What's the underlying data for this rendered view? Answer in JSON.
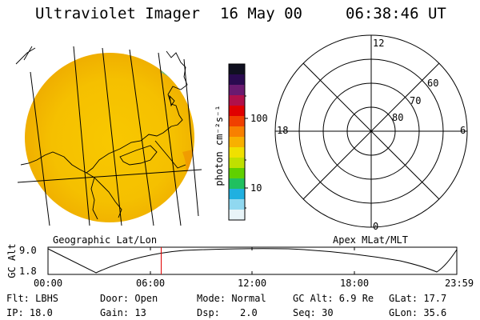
{
  "header": {
    "instrument": "Ultraviolet Imager",
    "date": "16 May 00",
    "time": "06:38:46 UT"
  },
  "colorbar": {
    "unit_label": "photon cm⁻²s⁻¹",
    "ticks": [
      "100",
      "10"
    ],
    "colors": [
      "#101020",
      "#2a0a50",
      "#6a1a70",
      "#b0104a",
      "#e00000",
      "#f04000",
      "#f88000",
      "#f8b000",
      "#f0e000",
      "#c0e000",
      "#60d000",
      "#20c060",
      "#20b0e0",
      "#90d8f0",
      "#e8f4f8"
    ]
  },
  "panels": {
    "left_label": "Geographic Lat/Lon",
    "right_label": "Apex MLat/MLT"
  },
  "polar": {
    "mlt_labels": [
      "12",
      "18",
      "6",
      "0"
    ],
    "lat_labels": [
      "60",
      "70",
      "80"
    ]
  },
  "timeline": {
    "axis_label": "GC Alt",
    "y_ticks": [
      "9.0",
      "1.8"
    ],
    "x_ticks": [
      "00:00",
      "06:00",
      "12:00",
      "18:00",
      "23:59"
    ],
    "current_time_fraction": 0.277
  },
  "status": {
    "flt": "Flt: LBHS",
    "door": "Door: Open",
    "mode": "Mode: Normal",
    "gc_alt": "GC Alt: 6.9 Re",
    "glat": "GLat: 17.7",
    "ip": "IP: 18.0",
    "gain": "Gain: 13",
    "dsp_label": "Dsp:",
    "dsp_value": "2.0",
    "seq": "Seq: 30",
    "glon": "GLon: 35.6"
  }
}
